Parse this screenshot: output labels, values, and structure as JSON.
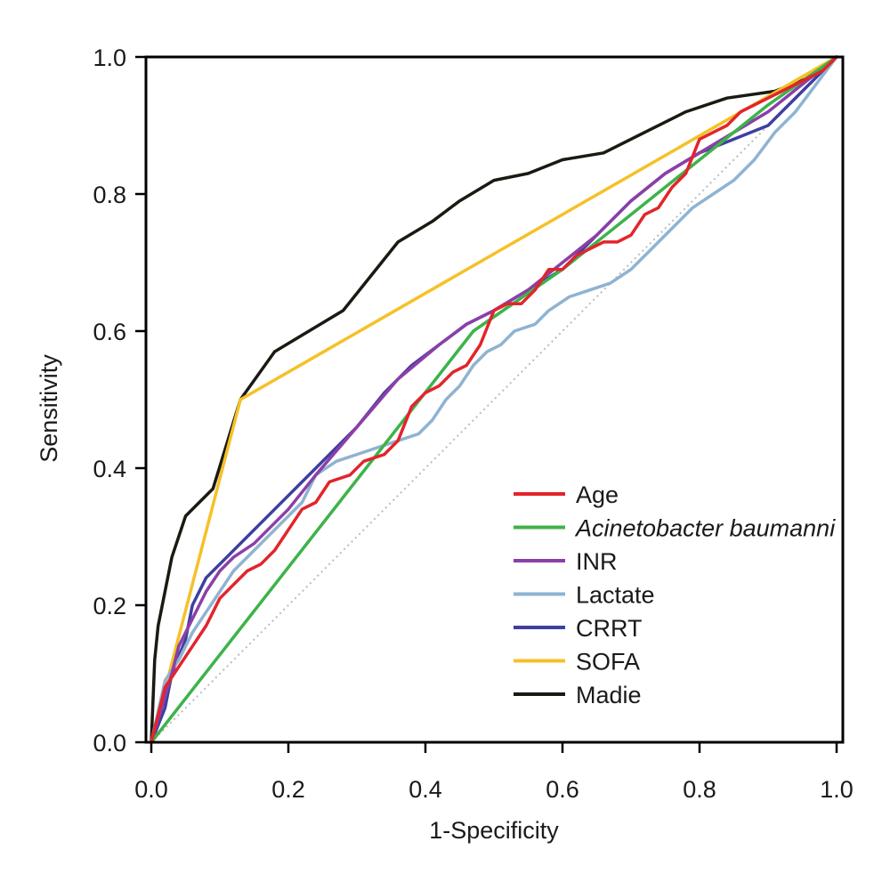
{
  "chart_data": {
    "type": "line",
    "title": "",
    "xlabel": "1-Specificity",
    "ylabel": "Sensitivity",
    "xlim": [
      0.0,
      1.0
    ],
    "ylim": [
      0.0,
      1.0
    ],
    "xticks": [
      "0.0",
      "0.2",
      "0.4",
      "0.6",
      "0.8",
      "1.0"
    ],
    "yticks": [
      "0.0",
      "0.2",
      "0.4",
      "0.6",
      "0.8",
      "1.0"
    ],
    "grid": false,
    "legend_position": "bottom-right",
    "reference_line": {
      "style": "dotted",
      "color": "#bbbbbb",
      "x": [
        0,
        1
      ],
      "y": [
        0,
        1
      ]
    },
    "series": [
      {
        "name": "Age",
        "color": "#e3242b",
        "italic": false,
        "x": [
          0,
          0.02,
          0.04,
          0.06,
          0.08,
          0.1,
          0.12,
          0.14,
          0.16,
          0.18,
          0.2,
          0.22,
          0.24,
          0.26,
          0.29,
          0.31,
          0.34,
          0.36,
          0.38,
          0.4,
          0.42,
          0.44,
          0.46,
          0.48,
          0.5,
          0.52,
          0.54,
          0.56,
          0.58,
          0.6,
          0.62,
          0.64,
          0.66,
          0.68,
          0.7,
          0.72,
          0.74,
          0.76,
          0.78,
          0.8,
          0.82,
          0.84,
          0.86,
          0.88,
          0.9,
          0.92,
          0.94,
          0.96,
          0.98,
          1.0
        ],
        "y": [
          0,
          0.08,
          0.11,
          0.14,
          0.17,
          0.21,
          0.23,
          0.25,
          0.26,
          0.28,
          0.31,
          0.34,
          0.35,
          0.38,
          0.39,
          0.41,
          0.42,
          0.44,
          0.49,
          0.51,
          0.52,
          0.54,
          0.55,
          0.58,
          0.63,
          0.64,
          0.64,
          0.66,
          0.69,
          0.69,
          0.71,
          0.72,
          0.73,
          0.73,
          0.74,
          0.77,
          0.78,
          0.81,
          0.83,
          0.88,
          0.89,
          0.9,
          0.92,
          0.93,
          0.94,
          0.95,
          0.96,
          0.97,
          0.98,
          1.0
        ]
      },
      {
        "name": "Acinetobacter baumanni",
        "color": "#3db34a",
        "italic": true,
        "x": [
          0,
          0.47,
          0.6,
          0.75,
          0.9,
          1.0
        ],
        "y": [
          0,
          0.6,
          0.69,
          0.81,
          0.93,
          1.0
        ]
      },
      {
        "name": "INR",
        "color": "#8b3fa7",
        "italic": false,
        "x": [
          0,
          0.03,
          0.04,
          0.06,
          0.08,
          0.1,
          0.12,
          0.15,
          0.2,
          0.24,
          0.3,
          0.36,
          0.42,
          0.46,
          0.5,
          0.55,
          0.6,
          0.65,
          0.7,
          0.75,
          0.8,
          0.85,
          0.9,
          0.95,
          1.0
        ],
        "y": [
          0,
          0.1,
          0.14,
          0.18,
          0.22,
          0.25,
          0.27,
          0.29,
          0.34,
          0.39,
          0.46,
          0.53,
          0.58,
          0.61,
          0.63,
          0.66,
          0.7,
          0.74,
          0.79,
          0.83,
          0.86,
          0.89,
          0.92,
          0.96,
          1.0
        ]
      },
      {
        "name": "Lactate",
        "color": "#8fb3d1",
        "italic": false,
        "x": [
          0,
          0.02,
          0.04,
          0.06,
          0.08,
          0.1,
          0.12,
          0.14,
          0.16,
          0.18,
          0.2,
          0.22,
          0.24,
          0.27,
          0.3,
          0.33,
          0.36,
          0.39,
          0.41,
          0.43,
          0.45,
          0.47,
          0.49,
          0.51,
          0.53,
          0.56,
          0.58,
          0.61,
          0.64,
          0.67,
          0.7,
          0.73,
          0.76,
          0.79,
          0.82,
          0.85,
          0.88,
          0.91,
          0.94,
          0.97,
          1.0
        ],
        "y": [
          0,
          0.09,
          0.12,
          0.16,
          0.19,
          0.22,
          0.25,
          0.27,
          0.29,
          0.31,
          0.33,
          0.35,
          0.39,
          0.41,
          0.42,
          0.43,
          0.44,
          0.45,
          0.47,
          0.5,
          0.52,
          0.55,
          0.57,
          0.58,
          0.6,
          0.61,
          0.63,
          0.65,
          0.66,
          0.67,
          0.69,
          0.72,
          0.75,
          0.78,
          0.8,
          0.82,
          0.85,
          0.89,
          0.92,
          0.96,
          1.0
        ]
      },
      {
        "name": "CRRT",
        "color": "#3f3fa0",
        "italic": false,
        "x": [
          0,
          0.02,
          0.03,
          0.05,
          0.06,
          0.08,
          0.1,
          0.14,
          0.18,
          0.22,
          0.26,
          0.3,
          0.34,
          0.38,
          0.42,
          0.46,
          0.5,
          0.55,
          0.6,
          0.65,
          0.7,
          0.75,
          0.8,
          0.85,
          0.9,
          0.95,
          1.0
        ],
        "y": [
          0,
          0.05,
          0.1,
          0.15,
          0.2,
          0.24,
          0.26,
          0.3,
          0.34,
          0.38,
          0.42,
          0.46,
          0.51,
          0.55,
          0.58,
          0.61,
          0.63,
          0.66,
          0.69,
          0.74,
          0.79,
          0.83,
          0.86,
          0.88,
          0.9,
          0.95,
          1.0
        ]
      },
      {
        "name": "SOFA",
        "color": "#f5c127",
        "italic": false,
        "x": [
          0,
          0.13,
          1.0
        ],
        "y": [
          0,
          0.5,
          1.0
        ]
      },
      {
        "name": "Madie",
        "color": "#1a1a12",
        "italic": false,
        "x": [
          0,
          0.005,
          0.01,
          0.02,
          0.03,
          0.05,
          0.09,
          0.13,
          0.18,
          0.23,
          0.28,
          0.32,
          0.36,
          0.41,
          0.45,
          0.5,
          0.55,
          0.6,
          0.66,
          0.72,
          0.78,
          0.84,
          0.91,
          0.96,
          1.0
        ],
        "y": [
          0,
          0.12,
          0.17,
          0.22,
          0.27,
          0.33,
          0.37,
          0.5,
          0.57,
          0.6,
          0.63,
          0.68,
          0.73,
          0.76,
          0.79,
          0.82,
          0.83,
          0.85,
          0.86,
          0.89,
          0.92,
          0.94,
          0.95,
          0.97,
          1.0
        ]
      }
    ]
  }
}
